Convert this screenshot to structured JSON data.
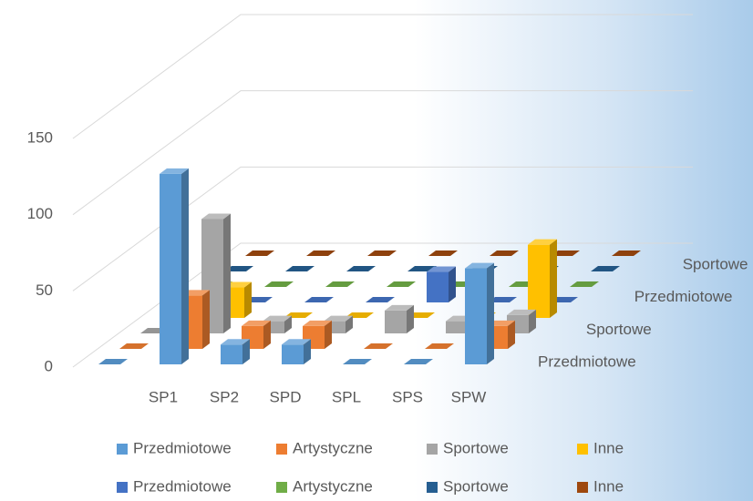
{
  "chart_data": {
    "type": "bar3d",
    "categories": [
      null,
      "SP1",
      "SP2",
      "SPD",
      "SPL",
      "SPS",
      "SPW"
    ],
    "series": [
      {
        "name": "Przedmiotowe",
        "color": "#5b9bd5",
        "values": [
          0,
          125,
          13,
          13,
          0,
          0,
          63
        ]
      },
      {
        "name": "Artystyczne",
        "color": "#ed7d31",
        "values": [
          0,
          35,
          15,
          15,
          0,
          0,
          15
        ]
      },
      {
        "name": "Sportowe",
        "color": "#a5a5a5",
        "values": [
          0,
          75,
          8,
          8,
          15,
          8,
          12
        ]
      },
      {
        "name": "Inne",
        "color": "#ffc000",
        "values": [
          0,
          20,
          0,
          0,
          0,
          0,
          48
        ]
      },
      {
        "name": "Przedmiotowe",
        "color": "#4472c4",
        "values": [
          0,
          0,
          0,
          0,
          20,
          0,
          0
        ]
      },
      {
        "name": "Artystyczne",
        "color": "#70ad47",
        "values": [
          0,
          0,
          0,
          0,
          0,
          0,
          0
        ]
      },
      {
        "name": "Sportowe",
        "color": "#255e91",
        "values": [
          0,
          0,
          0,
          0,
          0,
          0,
          0
        ]
      },
      {
        "name": "Inne",
        "color": "#9e480e",
        "values": [
          0,
          0,
          0,
          0,
          0,
          0,
          0
        ]
      }
    ],
    "ylim": [
      0,
      150
    ],
    "yticks": [
      0,
      50,
      100,
      150
    ],
    "grid": true,
    "legend": "bottom"
  }
}
